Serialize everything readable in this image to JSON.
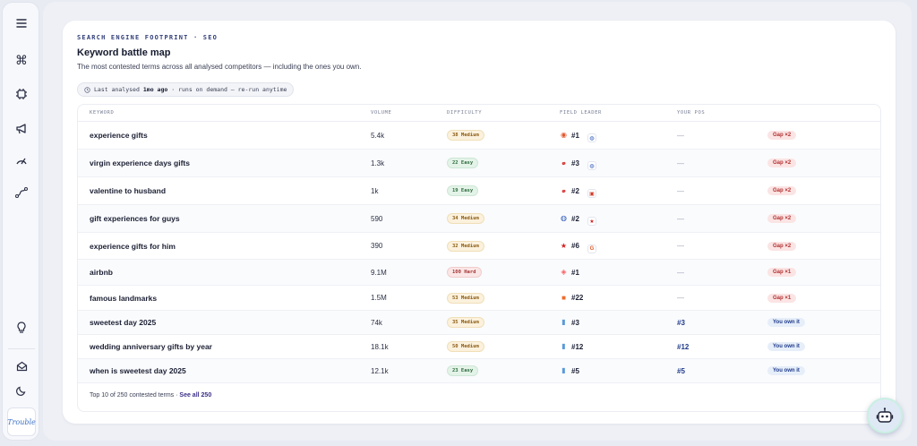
{
  "sidebar": {
    "icons": [
      "menu-icon",
      "command-icon",
      "chip-icon",
      "megaphone-icon",
      "gauge-icon",
      "route-icon",
      "lightbulb-icon",
      "mail-icon",
      "moon-icon"
    ],
    "logo_text": "Trouble"
  },
  "section": {
    "eyebrow": "SEARCH ENGINE FOOTPRINT · SEO",
    "title": "Keyword battle map",
    "subtitle": "The most contested terms across all analysed competitors — including the ones you own."
  },
  "analysis": {
    "prefix": "Last analysed",
    "age": "1mo ago",
    "suffix": "· runs on demand — re-run anytime"
  },
  "table": {
    "headers": {
      "keyword": "KEYWORD",
      "volume": "VOLUME",
      "difficulty": "DIFFICULTY",
      "leader": "FIELD LEADER",
      "pos": "YOUR POS"
    },
    "rows": [
      {
        "keyword": "experience gifts",
        "volume": "5.4k",
        "difficulty": "38 Medium",
        "level": "medium",
        "leader_rank": "#1",
        "pos": "—",
        "status": "Gap ×2",
        "state": "gap"
      },
      {
        "keyword": "virgin experience days gifts",
        "volume": "1.3k",
        "difficulty": "22 Easy",
        "level": "easy",
        "leader_rank": "#3",
        "pos": "—",
        "status": "Gap ×2",
        "state": "gap"
      },
      {
        "keyword": "valentine to husband",
        "volume": "1k",
        "difficulty": "19 Easy",
        "level": "easy",
        "leader_rank": "#2",
        "pos": "—",
        "status": "Gap ×2",
        "state": "gap"
      },
      {
        "keyword": "gift experiences for guys",
        "volume": "590",
        "difficulty": "34 Medium",
        "level": "medium",
        "leader_rank": "#2",
        "pos": "—",
        "status": "Gap ×2",
        "state": "gap"
      },
      {
        "keyword": "experience gifts for him",
        "volume": "390",
        "difficulty": "32 Medium",
        "level": "medium",
        "leader_rank": "#6",
        "pos": "—",
        "status": "Gap ×2",
        "state": "gap"
      },
      {
        "keyword": "airbnb",
        "volume": "9.1M",
        "difficulty": "100 Hard",
        "level": "hard",
        "leader_rank": "#1",
        "pos": "—",
        "status": "Gap ×1",
        "state": "gap"
      },
      {
        "keyword": "famous landmarks",
        "volume": "1.5M",
        "difficulty": "53 Medium",
        "level": "medium",
        "leader_rank": "#22",
        "pos": "—",
        "status": "Gap ×1",
        "state": "gap"
      },
      {
        "keyword": "sweetest day 2025",
        "volume": "74k",
        "difficulty": "35 Medium",
        "level": "medium",
        "leader_rank": "#3",
        "pos": "#3",
        "status": "You own it",
        "state": "own"
      },
      {
        "keyword": "wedding anniversary gifts by year",
        "volume": "18.1k",
        "difficulty": "50 Medium",
        "level": "medium",
        "leader_rank": "#12",
        "pos": "#12",
        "status": "You own it",
        "state": "own"
      },
      {
        "keyword": "when is sweetest day 2025",
        "volume": "12.1k",
        "difficulty": "23 Easy",
        "level": "easy",
        "leader_rank": "#5",
        "pos": "#5",
        "status": "You own it",
        "state": "own"
      }
    ],
    "leader_icons": [
      [
        "balloon-icon",
        "swirl-icon"
      ],
      [
        "virgin-logo-icon",
        "swirl-icon"
      ],
      [
        "virgin-logo-icon",
        "red-box-icon"
      ],
      [
        "swirl-icon",
        "star-icon"
      ],
      [
        "star-icon",
        "g-logo-icon"
      ],
      [
        "airbnb-icon",
        null
      ],
      [
        "orange-square-icon",
        null
      ],
      [
        "blue-tag-icon",
        null
      ],
      [
        "blue-tag-icon",
        null
      ],
      [
        "blue-tag-icon",
        null
      ]
    ]
  },
  "footer": {
    "summary": "Top 10 of 250 contested terms ·",
    "link": "See all 250"
  },
  "colors": {
    "accent": "#33407a",
    "gap_bg": "#fbe4e4",
    "gap_text": "#b23030",
    "own_bg": "#e6eef9",
    "own_text": "#1f3a8a",
    "medium": "#fbf1dd",
    "easy": "#e4f3e8",
    "hard": "#fbe6e6"
  }
}
